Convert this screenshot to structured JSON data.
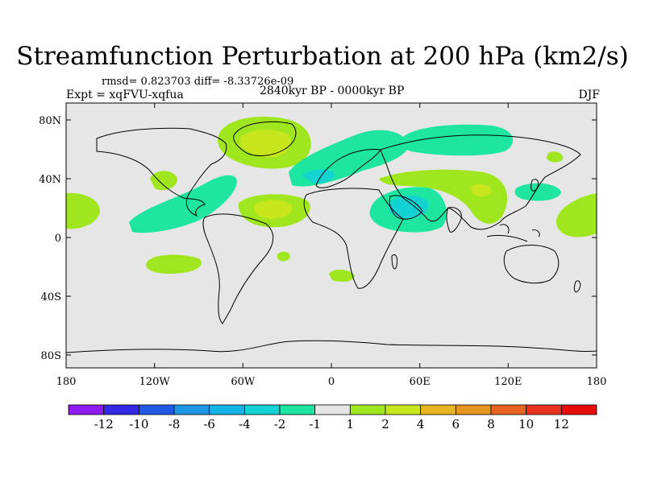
{
  "title": "Streamfunction Perturbation at 200 hPa (km2/s)",
  "stats_line": "rmsd= 0.823703 diff= -8.33726e-09",
  "experiment_label": "Expt = xqFVU-xqfua",
  "time_label": "2840kyr BP - 0000kyr BP",
  "season_label": "DJF",
  "y_ticks": [
    "80N",
    "40N",
    "0",
    "40S",
    "80S"
  ],
  "x_ticks": [
    "180",
    "120W",
    "60W",
    "0",
    "60E",
    "120E",
    "180"
  ],
  "colorbar": {
    "labels": [
      "-12",
      "-10",
      "-8",
      "-6",
      "-4",
      "-2",
      "-1",
      "1",
      "2",
      "4",
      "6",
      "8",
      "10",
      "12"
    ],
    "colors": [
      "#8c1cf0",
      "#3228e6",
      "#1e5ae6",
      "#1e96e6",
      "#14b4e6",
      "#14d2d2",
      "#1ee6a0",
      "#e6e6e6",
      "#a0e61e",
      "#c8e61e",
      "#e6b41e",
      "#e6961e",
      "#e6641e",
      "#e6321e",
      "#e60a0a"
    ]
  },
  "colors": {
    "background_field": "#e6e6e6",
    "coastline": "#000000"
  }
}
